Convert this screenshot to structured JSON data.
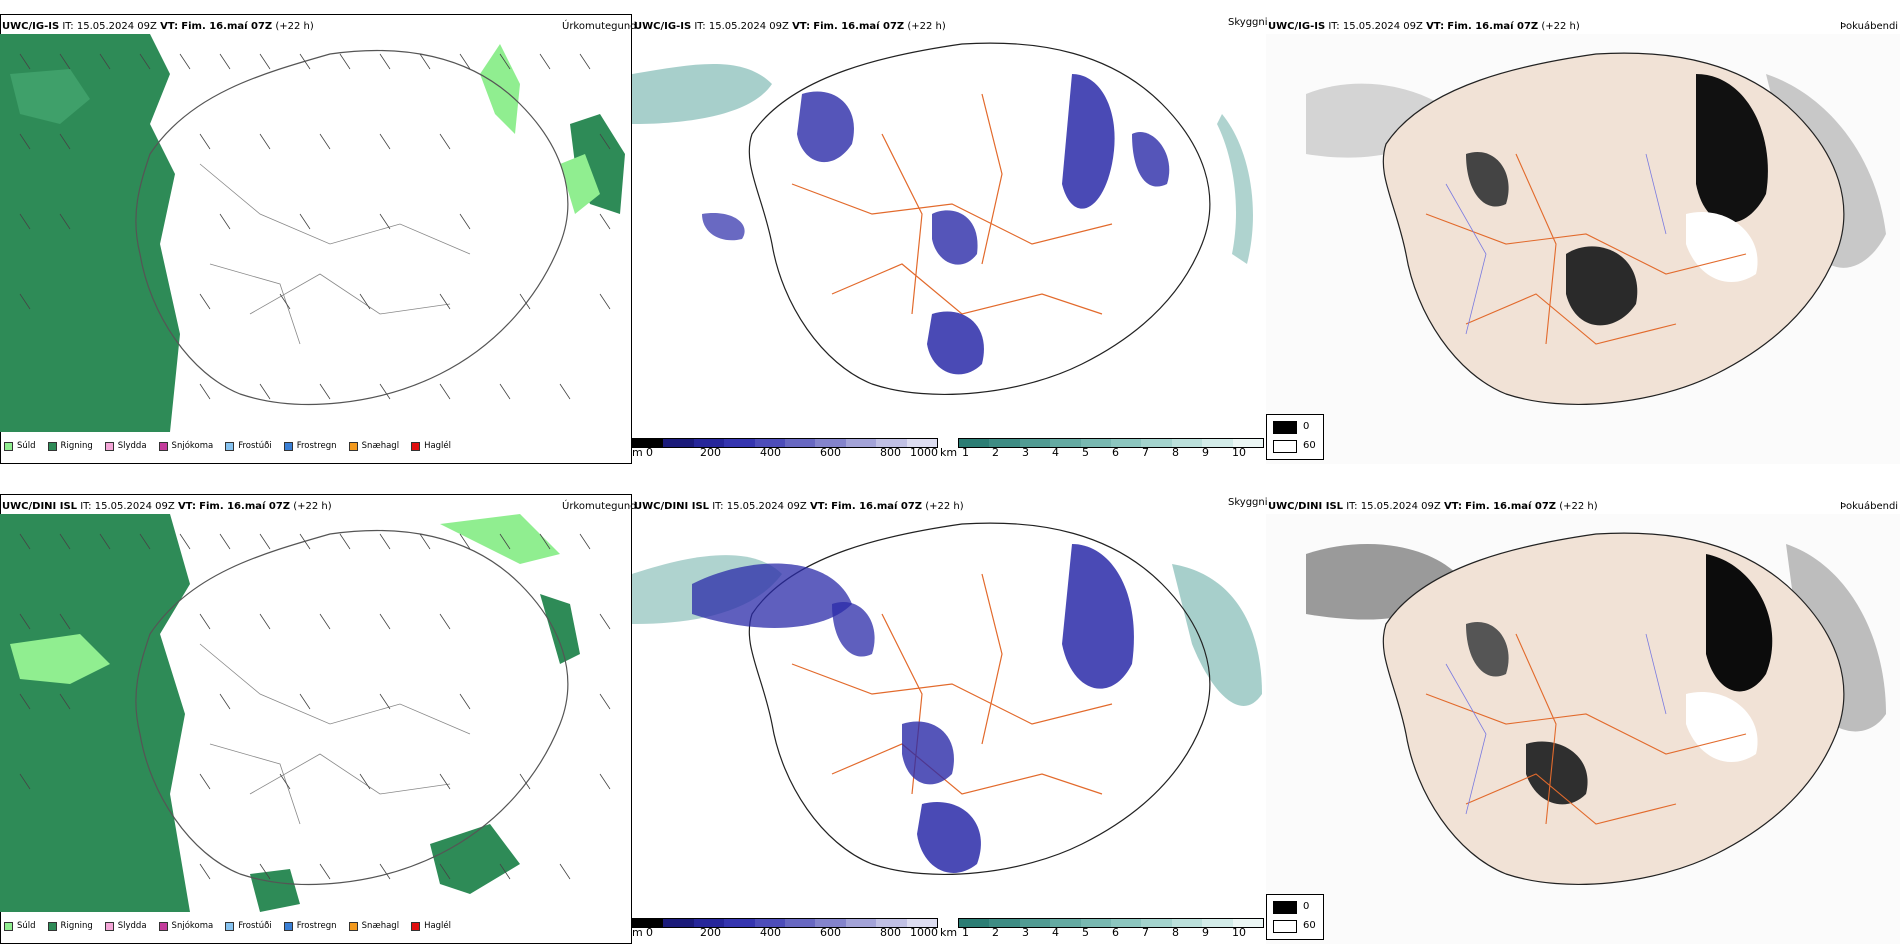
{
  "rows": [
    {
      "model": "UWC/IG-IS",
      "it_label": "IT:",
      "it_value": "15.05.2024 09Z",
      "vt_label": "VT:",
      "vt_value": "Fim. 16.maí 07Z",
      "lead": "(+22 h)"
    },
    {
      "model": "UWC/DINI ISL",
      "it_label": "IT:",
      "it_value": "15.05.2024 09Z",
      "vt_label": "VT:",
      "vt_value": "Fim. 16.maí 07Z",
      "lead": "(+22 h)"
    }
  ],
  "panel_titles": {
    "precip_type": "Úrkomutegund",
    "clouds": "Skyggni",
    "fog": "Þokuábendi"
  },
  "precip_legend": [
    {
      "label": "Súld",
      "color": "#90ee90"
    },
    {
      "label": "Rigning",
      "color": "#2e8b57"
    },
    {
      "label": "Slydda",
      "color": "#f4a6d7"
    },
    {
      "label": "Snjókoma",
      "color": "#c43c9c"
    },
    {
      "label": "Frostúði",
      "color": "#87c3f0"
    },
    {
      "label": "Frostregn",
      "color": "#3a7fd5"
    },
    {
      "label": "Snæhagl",
      "color": "#f39a1e"
    },
    {
      "label": "Haglél",
      "color": "#e01010"
    }
  ],
  "cloud_base_scale": {
    "unit": "m",
    "ticks": [
      "0",
      "200",
      "400",
      "600",
      "800",
      "1000"
    ],
    "colors": [
      "#000000",
      "#1a1a7a",
      "#26269a",
      "#3535b0",
      "#4d4dba",
      "#6868c2",
      "#8484cc",
      "#a3a3d8",
      "#c0c0e4",
      "#dcdcf0"
    ]
  },
  "visibility_scale": {
    "unit": "km",
    "ticks": [
      "1",
      "2",
      "3",
      "4",
      "5",
      "6",
      "7",
      "8",
      "9",
      "10"
    ],
    "colors": [
      "#2b7d74",
      "#3e8c84",
      "#519b93",
      "#64aaa2",
      "#78b8b1",
      "#8cc6bf",
      "#a3d3cd",
      "#bbe0db",
      "#d3ece9",
      "#ecf7f5"
    ]
  },
  "fog_legend": {
    "min": "0",
    "max": "60",
    "min_color": "#000000",
    "max_color": "#ffffff"
  },
  "colors": {
    "rain": "#2e8b57",
    "drizzle": "#90ee90",
    "cloud_blue": "#2a2aa8",
    "teal": "#5fa8a0",
    "roads": "#e26a2c",
    "land_fog": "#f1e2d6"
  }
}
